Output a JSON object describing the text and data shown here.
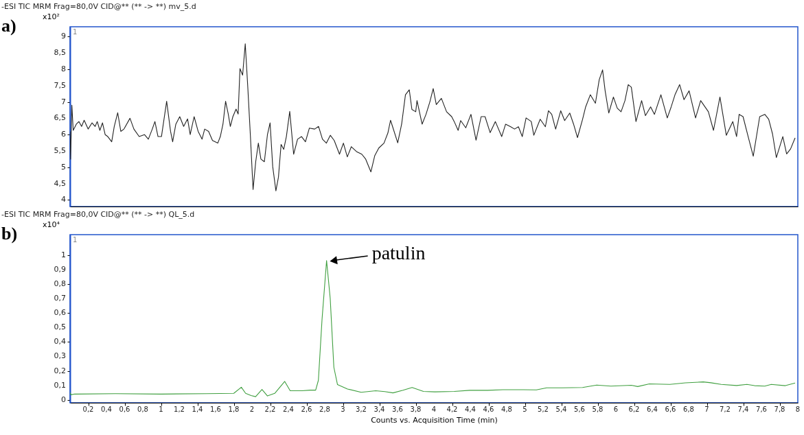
{
  "chart_data": [
    {
      "type": "line",
      "title": "-ESI TIC MRM Frag=80,0V CID@** (** -> **) mv_5.d",
      "ylabel": "x10²",
      "color": "#222222",
      "tick_labels": "y",
      "annotations": [
        "a)",
        "1"
      ],
      "xlim": [
        0,
        8
      ],
      "ylim": [
        3.8,
        9.3
      ],
      "yticks": [
        4,
        {
          "value": 4.5,
          "label": "4,5"
        },
        5,
        {
          "value": 5.5,
          "label": "5,5"
        },
        6,
        {
          "value": 6.5,
          "label": "6,5"
        },
        7,
        {
          "value": 7.5,
          "label": "7,5"
        },
        8,
        {
          "value": 8.5,
          "label": "8,5"
        },
        9
      ],
      "x": [
        0.0,
        0.006,
        0.02,
        0.035,
        0.069,
        0.098,
        0.127,
        0.155,
        0.199,
        0.242,
        0.276,
        0.299,
        0.328,
        0.357,
        0.386,
        0.415,
        0.458,
        0.486,
        0.524,
        0.558,
        0.593,
        0.659,
        0.702,
        0.76,
        0.818,
        0.861,
        0.904,
        0.933,
        0.967,
        1.005,
        1.062,
        1.105,
        1.128,
        1.163,
        1.206,
        1.249,
        1.292,
        1.321,
        1.364,
        1.408,
        1.451,
        1.48,
        1.523,
        1.566,
        1.624,
        1.652,
        1.681,
        1.71,
        1.739,
        1.762,
        1.79,
        1.825,
        1.848,
        1.868,
        1.897,
        1.926,
        1.955,
        1.983,
        2.012,
        2.041,
        2.07,
        2.098,
        2.136,
        2.17,
        2.199,
        2.228,
        2.263,
        2.291,
        2.32,
        2.349,
        2.378,
        2.415,
        2.458,
        2.501,
        2.545,
        2.588,
        2.631,
        2.689,
        2.732,
        2.775,
        2.818,
        2.861,
        2.904,
        2.962,
        3.005,
        3.048,
        3.092,
        3.149,
        3.207,
        3.25,
        3.307,
        3.35,
        3.394,
        3.451,
        3.494,
        3.523,
        3.546,
        3.602,
        3.645,
        3.687,
        3.729,
        3.758,
        3.8,
        3.814,
        3.87,
        3.913,
        3.955,
        3.992,
        4.026,
        4.082,
        4.139,
        4.195,
        4.223,
        4.266,
        4.294,
        4.35,
        4.407,
        4.463,
        4.519,
        4.562,
        4.618,
        4.675,
        4.745,
        4.788,
        4.844,
        4.886,
        4.929,
        4.971,
        5.013,
        5.07,
        5.098,
        5.168,
        5.225,
        5.259,
        5.295,
        5.338,
        5.394,
        5.437,
        5.493,
        5.535,
        5.578,
        5.634,
        5.668,
        5.719,
        5.775,
        5.817,
        5.854,
        5.882,
        5.922,
        5.973,
        6.015,
        6.057,
        6.1,
        6.136,
        6.17,
        6.221,
        6.283,
        6.325,
        6.382,
        6.424,
        6.495,
        6.565,
        6.608,
        6.65,
        6.701,
        6.749,
        6.805,
        6.876,
        6.932,
        7.017,
        7.073,
        7.144,
        7.214,
        7.285,
        7.327,
        7.355,
        7.398,
        7.454,
        7.51,
        7.581,
        7.637,
        7.68,
        7.722,
        7.764,
        7.835,
        7.877,
        7.92,
        7.97
      ],
      "values": [
        6.1,
        5.25,
        6.9,
        6.13,
        6.32,
        6.4,
        6.25,
        6.44,
        6.17,
        6.36,
        6.25,
        6.4,
        6.13,
        6.36,
        6.0,
        5.94,
        5.78,
        6.25,
        6.67,
        6.1,
        6.17,
        6.5,
        6.17,
        5.94,
        6.0,
        5.86,
        6.17,
        6.4,
        5.94,
        5.94,
        7.02,
        6.1,
        5.78,
        6.32,
        6.55,
        6.25,
        6.48,
        6.0,
        6.55,
        6.1,
        5.86,
        6.17,
        6.1,
        5.82,
        5.74,
        5.94,
        6.32,
        7.02,
        6.63,
        6.25,
        6.55,
        6.78,
        6.63,
        8.02,
        7.82,
        8.78,
        7.4,
        5.94,
        4.32,
        5.17,
        5.74,
        5.25,
        5.17,
        6.0,
        6.36,
        5.02,
        4.28,
        4.7,
        5.7,
        5.55,
        5.94,
        6.71,
        5.4,
        5.86,
        5.94,
        5.78,
        6.2,
        6.17,
        6.25,
        5.86,
        5.74,
        5.98,
        5.82,
        5.4,
        5.74,
        5.32,
        5.63,
        5.48,
        5.4,
        5.25,
        4.86,
        5.36,
        5.59,
        5.74,
        6.05,
        6.44,
        6.24,
        5.75,
        6.32,
        7.22,
        7.37,
        6.77,
        6.7,
        7.04,
        6.32,
        6.62,
        7.0,
        7.41,
        6.92,
        7.11,
        6.7,
        6.55,
        6.4,
        6.13,
        6.43,
        6.21,
        6.62,
        5.83,
        6.55,
        6.55,
        6.06,
        6.4,
        5.94,
        6.32,
        6.24,
        6.17,
        6.24,
        5.94,
        6.51,
        6.4,
        5.98,
        6.47,
        6.24,
        6.73,
        6.62,
        6.17,
        6.73,
        6.43,
        6.66,
        6.32,
        5.91,
        6.47,
        6.85,
        7.22,
        6.96,
        7.68,
        7.98,
        7.34,
        6.66,
        7.15,
        6.81,
        6.7,
        7.04,
        7.53,
        7.45,
        6.4,
        7.04,
        6.58,
        6.85,
        6.62,
        7.22,
        6.51,
        6.85,
        7.22,
        7.53,
        7.07,
        7.34,
        6.51,
        7.04,
        6.7,
        6.13,
        7.15,
        5.98,
        6.4,
        5.94,
        6.62,
        6.55,
        5.94,
        5.34,
        6.55,
        6.62,
        6.47,
        6.02,
        5.3,
        5.94,
        5.41,
        5.56,
        5.9
      ]
    },
    {
      "type": "line",
      "title": "-ESI TIC MRM Frag=80,0V CID@** (** -> **) QL_5.d",
      "ylabel": "x10⁴",
      "xlabel": "Counts vs. Acquisition Time (min)",
      "color": "#3f9f3f",
      "annotations": [
        "b)",
        "1",
        {
          "text": "patulin",
          "x": 2.82,
          "y": 0.96
        }
      ],
      "xlim": [
        0,
        8
      ],
      "ylim": [
        -0.02,
        1.14
      ],
      "xticks": [
        {
          "value": 0.2,
          "label": "0,2"
        },
        {
          "value": 0.4,
          "label": "0,4"
        },
        {
          "value": 0.6,
          "label": "0,6"
        },
        {
          "value": 0.8,
          "label": "0,8"
        },
        1,
        {
          "value": 1.2,
          "label": "1,2"
        },
        {
          "value": 1.4,
          "label": "1,4"
        },
        {
          "value": 1.6,
          "label": "1,6"
        },
        {
          "value": 1.8,
          "label": "1,8"
        },
        2,
        {
          "value": 2.2,
          "label": "2,2"
        },
        {
          "value": 2.4,
          "label": "2,4"
        },
        {
          "value": 2.6,
          "label": "2,6"
        },
        {
          "value": 2.8,
          "label": "2,8"
        },
        3,
        {
          "value": 3.2,
          "label": "3,2"
        },
        {
          "value": 3.4,
          "label": "3,4"
        },
        {
          "value": 3.6,
          "label": "3,6"
        },
        {
          "value": 3.8,
          "label": "3,8"
        },
        4,
        {
          "value": 4.2,
          "label": "4,2"
        },
        {
          "value": 4.4,
          "label": "4,4"
        },
        {
          "value": 4.6,
          "label": "4,6"
        },
        {
          "value": 4.8,
          "label": "4,8"
        },
        5,
        {
          "value": 5.2,
          "label": "5,2"
        },
        {
          "value": 5.4,
          "label": "5,4"
        },
        {
          "value": 5.6,
          "label": "5,6"
        },
        {
          "value": 5.8,
          "label": "5,8"
        },
        6,
        {
          "value": 6.2,
          "label": "6,2"
        },
        {
          "value": 6.4,
          "label": "6,4"
        },
        {
          "value": 6.6,
          "label": "6,6"
        },
        {
          "value": 6.8,
          "label": "6,8"
        },
        7,
        {
          "value": 7.2,
          "label": "7,2"
        },
        {
          "value": 7.4,
          "label": "7,4"
        },
        {
          "value": 7.6,
          "label": "7,6"
        },
        {
          "value": 7.8,
          "label": "7,8"
        },
        8
      ],
      "yticks": [
        0,
        {
          "value": 0.1,
          "label": "0,1"
        },
        {
          "value": 0.2,
          "label": "0,2"
        },
        {
          "value": 0.3,
          "label": "0,3"
        },
        {
          "value": 0.4,
          "label": "0,4"
        },
        {
          "value": 0.5,
          "label": "0,5"
        },
        {
          "value": 0.6,
          "label": "0,6"
        },
        {
          "value": 0.7,
          "label": "0,7"
        },
        {
          "value": 0.8,
          "label": "0,8"
        },
        {
          "value": 0.9,
          "label": "0,9"
        },
        1
      ],
      "x": [
        0.0,
        0.01,
        0.05,
        0.5,
        1.0,
        1.5,
        1.8,
        1.883,
        1.93,
        1.99,
        2.04,
        2.11,
        2.17,
        2.25,
        2.36,
        2.42,
        2.55,
        2.64,
        2.7,
        2.73,
        2.77,
        2.82,
        2.86,
        2.9,
        2.94,
        3.05,
        3.2,
        3.36,
        3.46,
        3.55,
        3.66,
        3.76,
        3.885,
        4.01,
        4.223,
        4.393,
        4.59,
        4.76,
        4.929,
        5.126,
        5.239,
        5.408,
        5.634,
        5.789,
        5.945,
        6.17,
        6.24,
        6.368,
        6.593,
        6.763,
        6.96,
        7.045,
        7.158,
        7.327,
        7.44,
        7.524,
        7.637,
        7.708,
        7.863,
        7.97
      ],
      "values": [
        0.05,
        0.035,
        0.04,
        0.043,
        0.04,
        0.043,
        0.045,
        0.087,
        0.045,
        0.03,
        0.022,
        0.072,
        0.027,
        0.045,
        0.127,
        0.063,
        0.063,
        0.067,
        0.067,
        0.135,
        0.554,
        0.961,
        0.7,
        0.225,
        0.105,
        0.075,
        0.052,
        0.063,
        0.057,
        0.048,
        0.066,
        0.085,
        0.058,
        0.055,
        0.058,
        0.066,
        0.066,
        0.07,
        0.07,
        0.069,
        0.083,
        0.083,
        0.085,
        0.102,
        0.095,
        0.101,
        0.092,
        0.11,
        0.107,
        0.117,
        0.124,
        0.118,
        0.107,
        0.099,
        0.107,
        0.098,
        0.095,
        0.107,
        0.098,
        0.116
      ]
    }
  ]
}
